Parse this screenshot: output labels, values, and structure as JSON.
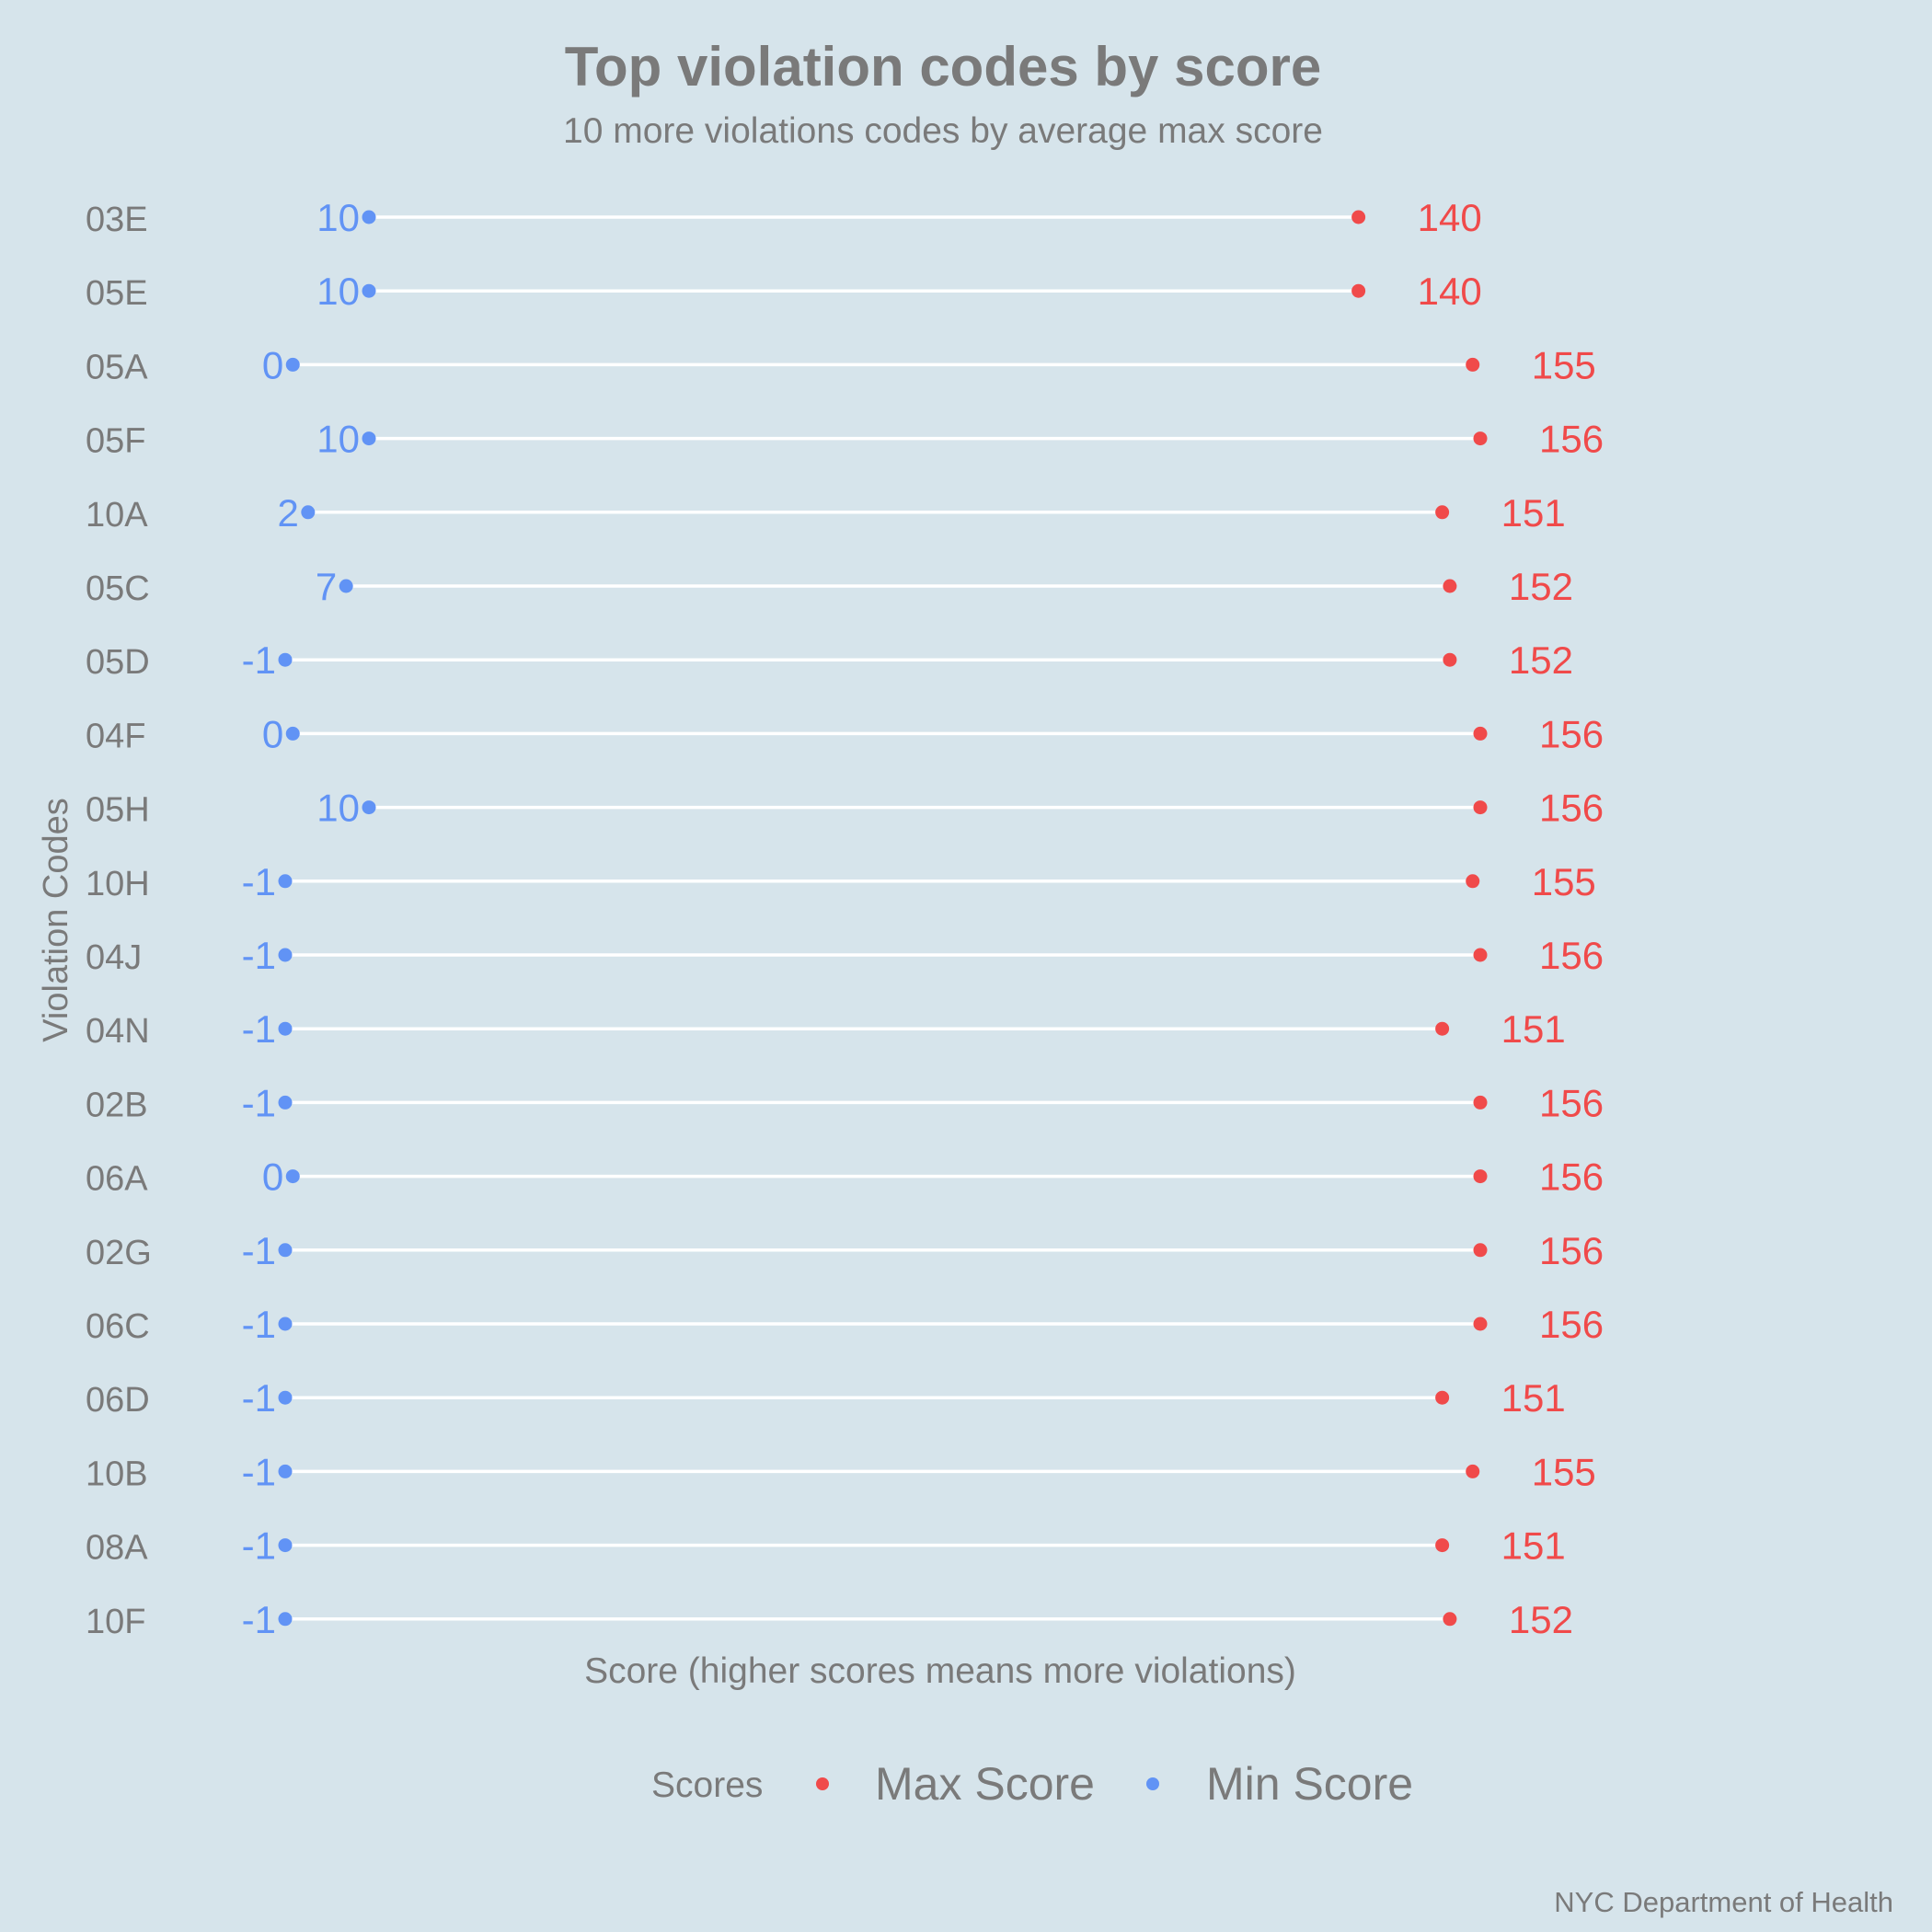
{
  "chart_data": {
    "type": "dumbbell",
    "title": "Top violation codes by score",
    "subtitle": "10 more violations codes by average max score",
    "xlabel": "Score (higher scores means more violations)",
    "ylabel": "Violation Codes",
    "caption": "NYC Department of Health",
    "xlim": [
      -1,
      156
    ],
    "grid": false,
    "legend": {
      "title": "Scores",
      "position": "bottom",
      "entries": [
        {
          "label": "Max Score",
          "color": "#f04a4a"
        },
        {
          "label": "Min Score",
          "color": "#6193f5"
        }
      ]
    },
    "categories": [
      "03E",
      "05E",
      "05A",
      "05F",
      "10A",
      "05C",
      "05D",
      "04F",
      "05H",
      "10H",
      "04J",
      "04N",
      "02B",
      "06A",
      "02G",
      "06C",
      "06D",
      "10B",
      "08A",
      "10F"
    ],
    "series": [
      {
        "name": "Max Score",
        "color": "#f04a4a",
        "values": [
          140,
          140,
          155,
          156,
          151,
          152,
          152,
          156,
          156,
          155,
          156,
          151,
          156,
          156,
          156,
          156,
          151,
          155,
          151,
          152
        ]
      },
      {
        "name": "Min Score",
        "color": "#6193f5",
        "values": [
          10,
          10,
          0,
          10,
          2,
          7,
          -1,
          0,
          10,
          -1,
          -1,
          -1,
          -1,
          0,
          -1,
          -1,
          -1,
          -1,
          -1,
          -1
        ]
      }
    ],
    "colors": {
      "background": "#d6e4eb",
      "segment": "#ffffff",
      "text": "#7a7a7a"
    }
  }
}
